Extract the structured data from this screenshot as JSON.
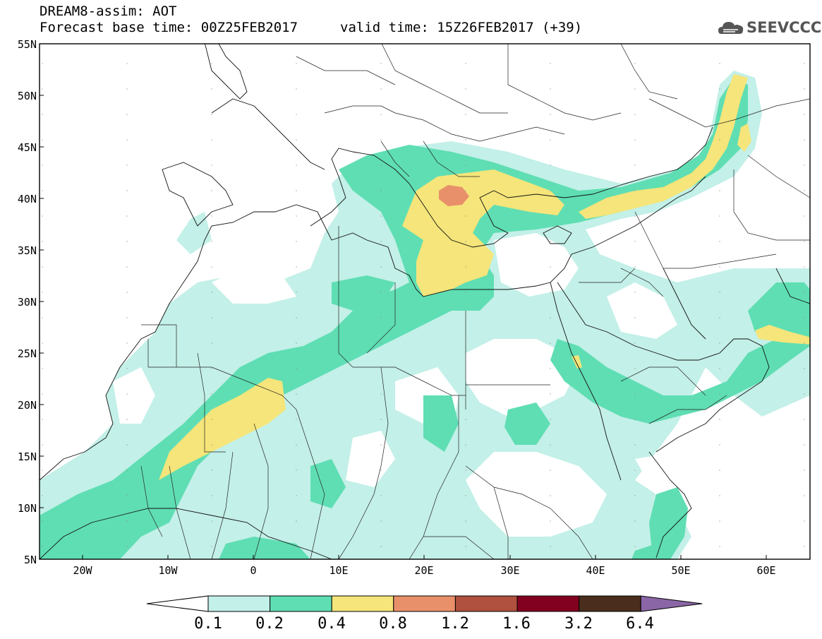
{
  "header": {
    "title_line1": "DREAM8-assim: AOT",
    "title_line2": "Forecast base time: 00Z25FEB2017",
    "valid_time": "valid time: 15Z26FEB2017 (+39)",
    "logo_text": "SEEVCCC",
    "logo_icon": "cloud-icon"
  },
  "map": {
    "lat_labels": [
      "55N",
      "50N",
      "45N",
      "40N",
      "35N",
      "30N",
      "25N",
      "20N",
      "15N",
      "10N",
      "5N"
    ],
    "lon_labels": [
      "20W",
      "10W",
      "0",
      "10E",
      "20E",
      "30E",
      "40E",
      "50E",
      "60E"
    ],
    "lon_range": [
      -25,
      65
    ],
    "lat_range": [
      5,
      55
    ]
  },
  "colorbar": {
    "labels": [
      "0.1",
      "0.2",
      "0.4",
      "0.8",
      "1.2",
      "1.6",
      "3.2",
      "6.4"
    ],
    "colors": [
      "#ffffff",
      "#c3f0e8",
      "#5fdeb3",
      "#f5e57a",
      "#e8906a",
      "#b0503e",
      "#820020",
      "#4a2d1c",
      "#8a66a6"
    ]
  }
}
